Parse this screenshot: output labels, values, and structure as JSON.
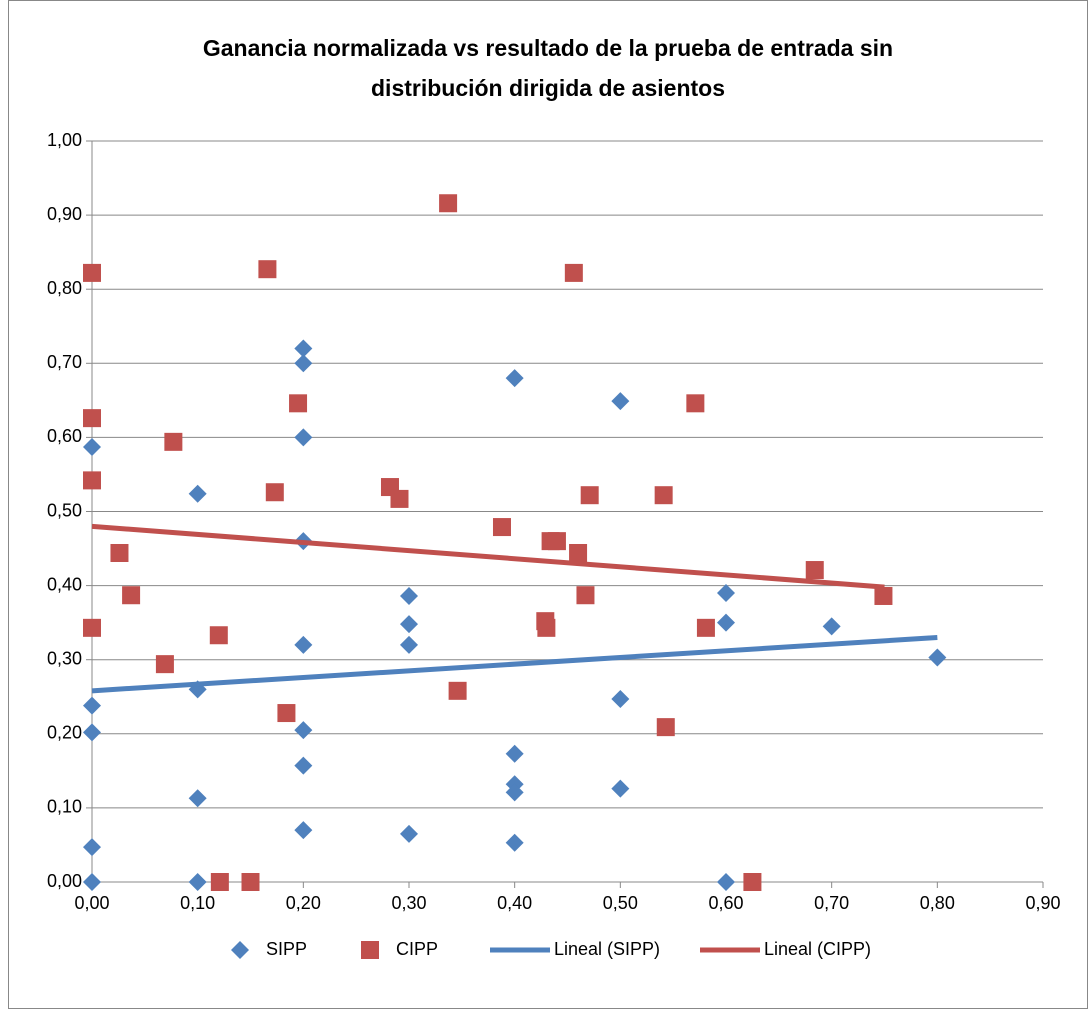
{
  "chart_data": {
    "type": "scatter",
    "title": [
      "Ganancia normalizada vs resultado de la prueba de entrada sin",
      "distribución dirigida de asientos"
    ],
    "xlim": [
      0,
      0.9
    ],
    "ylim": [
      0,
      1
    ],
    "xticks": [
      {
        "value": 0,
        "label": "0,00"
      },
      {
        "value": 0.1,
        "label": "0,10"
      },
      {
        "value": 0.2,
        "label": "0,20"
      },
      {
        "value": 0.3,
        "label": "0,30"
      },
      {
        "value": 0.4,
        "label": "0,40"
      },
      {
        "value": 0.5,
        "label": "0,50"
      },
      {
        "value": 0.6,
        "label": "0,60"
      },
      {
        "value": 0.7,
        "label": "0,70"
      },
      {
        "value": 0.8,
        "label": "0,80"
      },
      {
        "value": 0.9,
        "label": "0,90"
      }
    ],
    "yticks": [
      {
        "value": 0,
        "label": "0,00"
      },
      {
        "value": 0.1,
        "label": "0,10"
      },
      {
        "value": 0.2,
        "label": "0,20"
      },
      {
        "value": 0.3,
        "label": "0,30"
      },
      {
        "value": 0.4,
        "label": "0,40"
      },
      {
        "value": 0.5,
        "label": "0,50"
      },
      {
        "value": 0.6,
        "label": "0,60"
      },
      {
        "value": 0.7,
        "label": "0,70"
      },
      {
        "value": 0.8,
        "label": "0,80"
      },
      {
        "value": 0.9,
        "label": "0,90"
      },
      {
        "value": 1,
        "label": "1,00"
      }
    ],
    "grid": true,
    "legend": "bottom",
    "series": [
      {
        "name": "SIPP",
        "color": "#4f81bd",
        "marker": "diamond",
        "x": [
          0,
          0,
          0,
          0,
          0,
          0.1,
          0.1,
          0.1,
          0.1,
          0.2,
          0.2,
          0.2,
          0.2,
          0.2,
          0.2,
          0.2,
          0.2,
          0.3,
          0.3,
          0.3,
          0.3,
          0.4,
          0.4,
          0.4,
          0.4,
          0.4,
          0.5,
          0.5,
          0.5,
          0.6,
          0.6,
          0.6,
          0.7,
          0.8
        ],
        "values": [
          0.587,
          0.238,
          0.202,
          0.047,
          0,
          0.524,
          0.26,
          0.113,
          0,
          0.72,
          0.7,
          0.6,
          0.46,
          0.32,
          0.205,
          0.157,
          0.07,
          0.386,
          0.348,
          0.32,
          0.065,
          0.68,
          0.173,
          0.132,
          0.121,
          0.053,
          0.649,
          0.247,
          0.126,
          0.39,
          0.35,
          0,
          0.345,
          0.303
        ]
      },
      {
        "name": "CIPP",
        "color": "#c0504d",
        "marker": "square",
        "x": [
          0,
          0,
          0,
          0,
          0.026,
          0.037,
          0.069,
          0.077,
          0.121,
          0.12,
          0.15,
          0.166,
          0.173,
          0.184,
          0.195,
          0.337,
          0.282,
          0.291,
          0.346,
          0.388,
          0.429,
          0.43,
          0.434,
          0.44,
          0.456,
          0.46,
          0.467,
          0.471,
          0.541,
          0.543,
          0.571,
          0.581,
          0.625,
          0.684,
          0.749
        ],
        "values": [
          0.822,
          0.626,
          0.542,
          0.343,
          0.444,
          0.387,
          0.294,
          0.594,
          0,
          0.333,
          0,
          0.827,
          0.526,
          0.228,
          0.646,
          0.916,
          0.533,
          0.517,
          0.258,
          0.479,
          0.352,
          0.343,
          0.46,
          0.46,
          0.822,
          0.444,
          0.387,
          0.522,
          0.522,
          0.209,
          0.646,
          0.343,
          0,
          0.421,
          0.386
        ]
      },
      {
        "name": "Lineal (SIPP)",
        "color": "#4f81bd",
        "marker": "line",
        "x": [
          0,
          0.8
        ],
        "values": [
          0.258,
          0.33
        ]
      },
      {
        "name": "Lineal (CIPP)",
        "color": "#c0504d",
        "marker": "line",
        "x": [
          0,
          0.75
        ],
        "values": [
          0.48,
          0.398
        ]
      }
    ]
  }
}
